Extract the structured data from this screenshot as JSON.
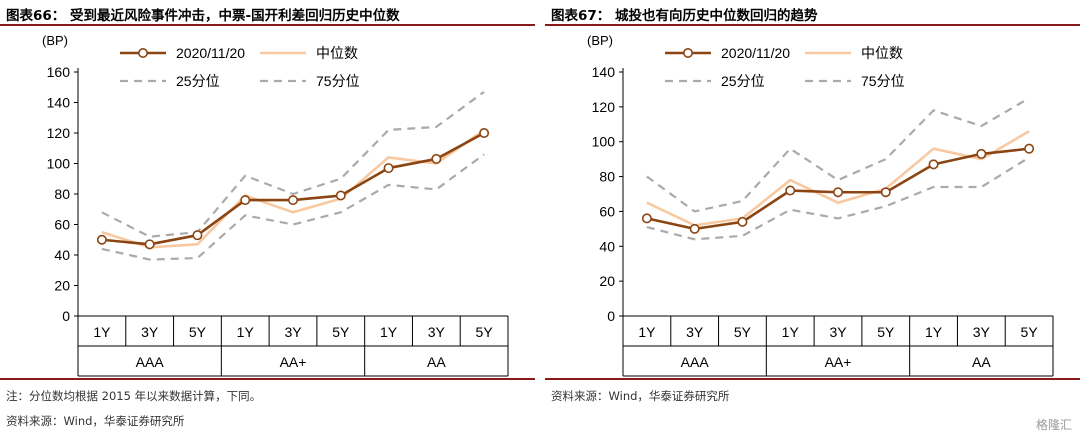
{
  "colors": {
    "current": "#8B4513",
    "median": "#F8C9A0",
    "quartile": "#AAAAAA",
    "rule": "#8A1A1A"
  },
  "chart_data": [
    {
      "type": "line",
      "title": "图表66：  受到最近风险事件冲击，中票-国开利差回归历史中位数",
      "ylabel": "(BP)",
      "ylim": [
        0,
        160
      ],
      "yticks": [
        0,
        20,
        40,
        60,
        80,
        100,
        120,
        140,
        160
      ],
      "groups": [
        "AAA",
        "AA+",
        "AA"
      ],
      "categories": [
        "1Y",
        "3Y",
        "5Y",
        "1Y",
        "3Y",
        "5Y",
        "1Y",
        "3Y",
        "5Y"
      ],
      "grid": false,
      "legend_position": "top",
      "series": [
        {
          "name": "2020/11/20",
          "style": "current",
          "values": [
            50,
            47,
            53,
            76,
            76,
            79,
            97,
            103,
            120
          ]
        },
        {
          "name": "中位数",
          "style": "median",
          "values": [
            55,
            45,
            47,
            79,
            68,
            77,
            104,
            100,
            122
          ]
        },
        {
          "name": "25分位",
          "style": "quartile",
          "values": [
            44,
            37,
            38,
            66,
            60,
            68,
            86,
            83,
            106
          ]
        },
        {
          "name": "75分位",
          "style": "quartile",
          "values": [
            68,
            52,
            55,
            92,
            80,
            90,
            122,
            124,
            147
          ]
        }
      ],
      "notes": [
        "注：分位数均根据 2015 年以来数据计算，下同。",
        "资料来源：Wind，华泰证券研究所"
      ]
    },
    {
      "type": "line",
      "title": "图表67：  城投也有向历史中位数回归的趋势",
      "ylabel": "(BP)",
      "ylim": [
        0,
        140
      ],
      "yticks": [
        0,
        20,
        40,
        60,
        80,
        100,
        120,
        140
      ],
      "groups": [
        "AAA",
        "AA+",
        "AA"
      ],
      "categories": [
        "1Y",
        "3Y",
        "5Y",
        "1Y",
        "3Y",
        "5Y",
        "1Y",
        "3Y",
        "5Y"
      ],
      "grid": false,
      "legend_position": "top",
      "series": [
        {
          "name": "2020/11/20",
          "style": "current",
          "values": [
            56,
            50,
            54,
            72,
            71,
            71,
            87,
            93,
            96
          ]
        },
        {
          "name": "中位数",
          "style": "median",
          "values": [
            65,
            52,
            56,
            78,
            65,
            73,
            96,
            90,
            106
          ]
        },
        {
          "name": "25分位",
          "style": "quartile",
          "values": [
            51,
            44,
            46,
            61,
            56,
            63,
            74,
            74,
            91
          ]
        },
        {
          "name": "75分位",
          "style": "quartile",
          "values": [
            80,
            60,
            66,
            96,
            78,
            90,
            118,
            109,
            125
          ]
        }
      ],
      "notes": [
        "资料来源：Wind，华泰证券研究所"
      ]
    }
  ],
  "watermark": "格隆汇"
}
